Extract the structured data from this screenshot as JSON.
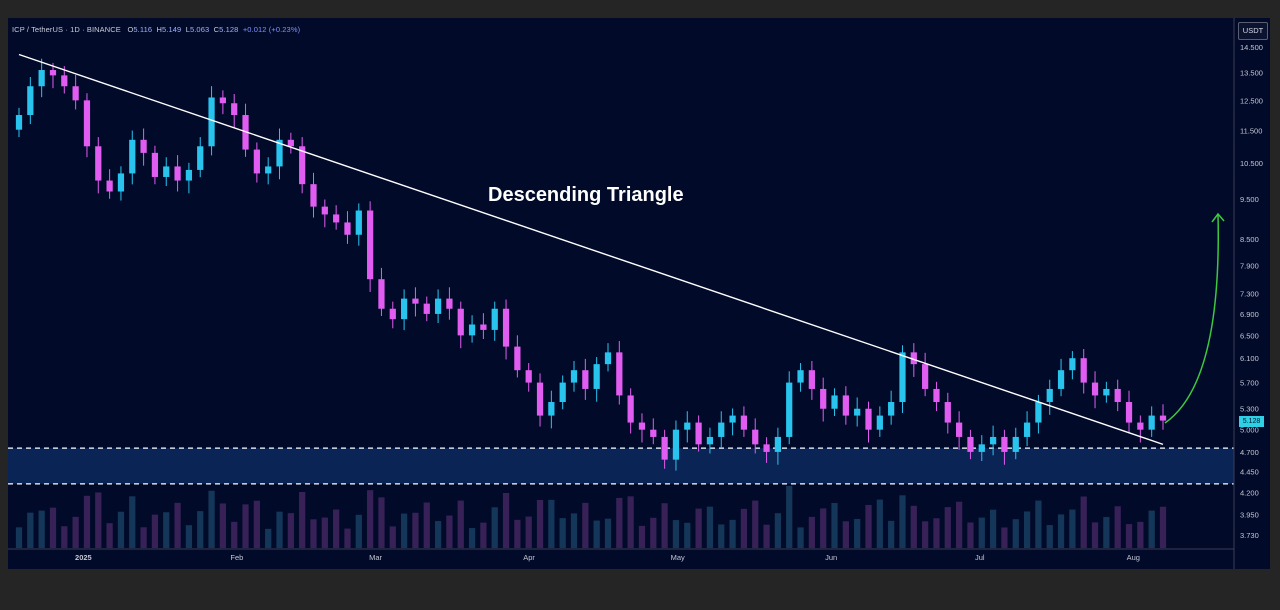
{
  "chart_data": {
    "type": "candlestick",
    "symbol": "ICP / TetherUS · 1D · BINANCE",
    "ohlc_header": {
      "o_label": "O",
      "o": "5.116",
      "h_label": "H",
      "h": "5.149",
      "l_label": "L",
      "l": "5.063",
      "c_label": "C",
      "c": "5.128",
      "change": "+0.012 (+0.23%)"
    },
    "currency": "USDT",
    "last_price_tag": "5.128",
    "annotation": "Descending Triangle",
    "y_axis_ticks": [
      "14.500",
      "13.500",
      "12.500",
      "11.500",
      "10.500",
      "9.500",
      "8.500",
      "7.900",
      "7.300",
      "6.900",
      "6.500",
      "6.100",
      "5.700",
      "5.300",
      "5.000",
      "4.700",
      "4.450",
      "4.200",
      "3.950",
      "3.730"
    ],
    "x_axis_ticks": [
      "2025",
      "Feb",
      "Mar",
      "Apr",
      "May",
      "Jun",
      "Jul",
      "Aug"
    ],
    "y_scale": "logarithmic",
    "date_range": [
      "2024-12-19",
      "2025-08-07"
    ],
    "trendline": {
      "from": [
        "2024-12-19",
        14.2
      ],
      "to": [
        "2025-08-07",
        4.8
      ]
    },
    "support_zone": [
      4.3,
      4.75
    ],
    "projection_arrow": "up",
    "closes": [
      12.0,
      13.0,
      13.6,
      13.4,
      13.0,
      12.5,
      11.0,
      10.0,
      9.7,
      10.2,
      11.2,
      10.8,
      10.1,
      10.4,
      10.0,
      10.3,
      11.0,
      12.6,
      12.4,
      12.0,
      10.9,
      10.2,
      10.4,
      11.2,
      11.0,
      9.9,
      9.3,
      9.1,
      8.9,
      8.6,
      9.2,
      7.6,
      7.0,
      6.8,
      7.2,
      7.1,
      6.9,
      7.2,
      7.0,
      6.5,
      6.7,
      6.6,
      7.0,
      6.3,
      5.9,
      5.7,
      5.2,
      5.4,
      5.7,
      5.9,
      5.6,
      6.0,
      6.2,
      5.5,
      5.1,
      5.0,
      4.9,
      4.6,
      5.0,
      5.1,
      4.8,
      4.9,
      5.1,
      5.2,
      5.0,
      4.8,
      4.7,
      4.9,
      5.7,
      5.9,
      5.6,
      5.3,
      5.5,
      5.2,
      5.3,
      5.0,
      5.2,
      5.4,
      6.2,
      6.0,
      5.6,
      5.4,
      5.1,
      4.9,
      4.7,
      4.8,
      4.9,
      4.7,
      4.9,
      5.1,
      5.4,
      5.6,
      5.9,
      6.1,
      5.7,
      5.5,
      5.6,
      5.4,
      5.1,
      5.0,
      5.2,
      5.128
    ],
    "volume_note": "relative volume histogram at bottom of price pane"
  }
}
